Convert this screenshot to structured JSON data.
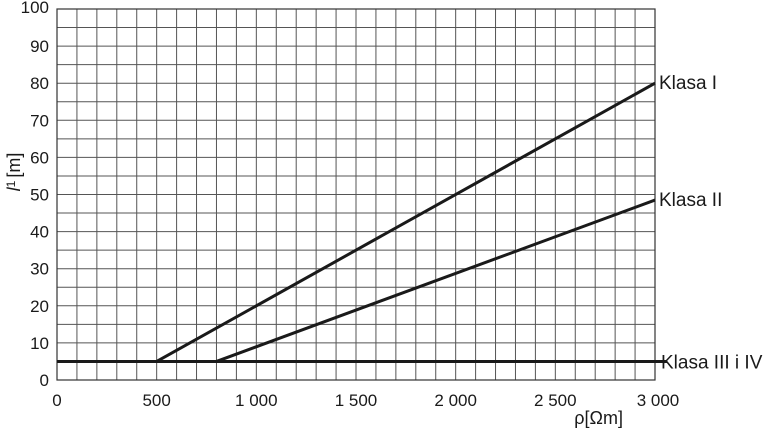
{
  "chart_data": {
    "type": "line",
    "title": "",
    "xlabel": "ρ[Ωm]",
    "ylabel": "l₁[m]",
    "ylabel_main": "l",
    "ylabel_sub": "1",
    "ylabel_unit": "[m]",
    "xlim": [
      0,
      3000
    ],
    "ylim": [
      0,
      100
    ],
    "x_ticks": [
      {
        "value": 0,
        "label": "0"
      },
      {
        "value": 500,
        "label": "500"
      },
      {
        "value": 1000,
        "label": "1 000"
      },
      {
        "value": 1500,
        "label": "1 500"
      },
      {
        "value": 2000,
        "label": "2 000"
      },
      {
        "value": 2500,
        "label": "2 500"
      },
      {
        "value": 3000,
        "label": "3 000"
      }
    ],
    "y_ticks": [
      {
        "value": 0,
        "label": "0"
      },
      {
        "value": 10,
        "label": "10"
      },
      {
        "value": 20,
        "label": "20"
      },
      {
        "value": 30,
        "label": "30"
      },
      {
        "value": 40,
        "label": "40"
      },
      {
        "value": 50,
        "label": "50"
      },
      {
        "value": 60,
        "label": "60"
      },
      {
        "value": 70,
        "label": "70"
      },
      {
        "value": 80,
        "label": "80"
      },
      {
        "value": 90,
        "label": "90"
      },
      {
        "value": 100,
        "label": "100"
      }
    ],
    "grid": true,
    "grid_x_step": 100,
    "grid_y_step": 5,
    "series": [
      {
        "name": "Klasa I",
        "x": [
          500,
          3000
        ],
        "y": [
          5,
          80
        ]
      },
      {
        "name": "Klasa II",
        "x": [
          800,
          3000
        ],
        "y": [
          5,
          48.5
        ]
      },
      {
        "name": "Klasa III i IV",
        "x": [
          0,
          3000
        ],
        "y": [
          5,
          5
        ]
      }
    ]
  }
}
